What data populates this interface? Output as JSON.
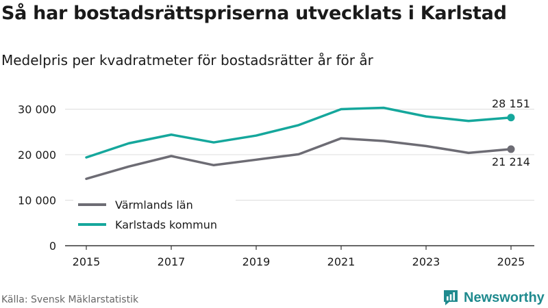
{
  "title": "Så har bostadsrättspriserna utvecklats i Karlstad",
  "subtitle": "Medelpris per kvadratmeter för bostadsrätter år för år",
  "source": "Källa: Svensk Mäklarstatistik",
  "brand": {
    "name": "Newsworthy",
    "icon": "newsworthy-logo-icon",
    "color": "#1f8a8e"
  },
  "chart_data": {
    "type": "line",
    "x": [
      2015,
      2016,
      2017,
      2018,
      2019,
      2020,
      2021,
      2022,
      2023,
      2024,
      2025
    ],
    "xticks": [
      2015,
      2017,
      2019,
      2021,
      2023,
      2025
    ],
    "xtick_labels": [
      "2015",
      "2017",
      "2019",
      "2021",
      "2023",
      "2025"
    ],
    "yticks": [
      0,
      10000,
      20000,
      30000
    ],
    "ytick_labels": [
      "0",
      "10 000",
      "20 000",
      "30 000"
    ],
    "ylim": [
      0,
      34000
    ],
    "grid": true,
    "legend_position": "bottom-left",
    "series": [
      {
        "name": "Värmlands län",
        "color": "#6d6c74",
        "values": [
          14700,
          17400,
          19700,
          17700,
          18900,
          20100,
          23600,
          23000,
          21900,
          20400,
          21214
        ],
        "end_label": "21 214"
      },
      {
        "name": "Karlstads kommun",
        "color": "#15a79c",
        "values": [
          19400,
          22500,
          24400,
          22700,
          24200,
          26500,
          30000,
          30300,
          28400,
          27400,
          28151
        ],
        "end_label": "28 151"
      }
    ]
  }
}
